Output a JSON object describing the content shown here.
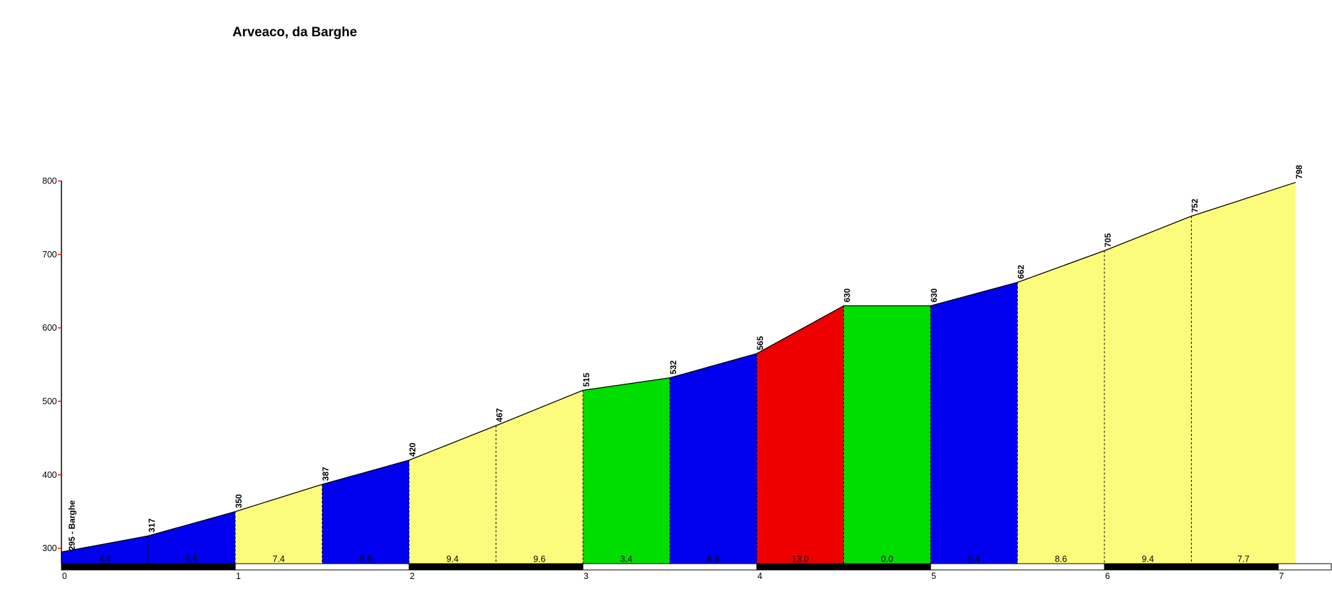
{
  "title": "Arveaco, da Barghe",
  "chart_data": {
    "type": "area",
    "title": "Arveaco, da Barghe",
    "description": "Climb elevation profile; colored 0.5 km segments by average gradient (%), elevations in m",
    "start_label": "295 - Barghe",
    "start_km": 0.0,
    "start_elevation": 295,
    "end_elevation": 798,
    "total_km": 7.1,
    "x_ticks": [
      0,
      1,
      2,
      3,
      4,
      5,
      6,
      7
    ],
    "y_ticks": [
      300,
      400,
      500,
      600,
      700,
      800
    ],
    "ylim": [
      300,
      800
    ],
    "grid": false,
    "segments": [
      {
        "from_km": 0.0,
        "to_km": 0.5,
        "from_elev": 295,
        "to_elev": 317,
        "gradient": "4.4",
        "color": "blue"
      },
      {
        "from_km": 0.5,
        "to_km": 1.0,
        "from_elev": 317,
        "to_elev": 350,
        "gradient": "6.6",
        "color": "blue"
      },
      {
        "from_km": 1.0,
        "to_km": 1.5,
        "from_elev": 350,
        "to_elev": 387,
        "gradient": "7.4",
        "color": "yellow"
      },
      {
        "from_km": 1.5,
        "to_km": 2.0,
        "from_elev": 387,
        "to_elev": 420,
        "gradient": "6.6",
        "color": "blue"
      },
      {
        "from_km": 2.0,
        "to_km": 2.5,
        "from_elev": 420,
        "to_elev": 467,
        "gradient": "9.4",
        "color": "yellow"
      },
      {
        "from_km": 2.5,
        "to_km": 3.0,
        "from_elev": 467,
        "to_elev": 515,
        "gradient": "9.6",
        "color": "yellow"
      },
      {
        "from_km": 3.0,
        "to_km": 3.5,
        "from_elev": 515,
        "to_elev": 532,
        "gradient": "3.4",
        "color": "green"
      },
      {
        "from_km": 3.5,
        "to_km": 4.0,
        "from_elev": 532,
        "to_elev": 565,
        "gradient": "6.6",
        "color": "blue"
      },
      {
        "from_km": 4.0,
        "to_km": 4.5,
        "from_elev": 565,
        "to_elev": 630,
        "gradient": "13.0",
        "color": "red"
      },
      {
        "from_km": 4.5,
        "to_km": 5.0,
        "from_elev": 630,
        "to_elev": 630,
        "gradient": "0.0",
        "color": "green"
      },
      {
        "from_km": 5.0,
        "to_km": 5.5,
        "from_elev": 630,
        "to_elev": 662,
        "gradient": "6.4",
        "color": "blue"
      },
      {
        "from_km": 5.5,
        "to_km": 6.0,
        "from_elev": 662,
        "to_elev": 705,
        "gradient": "8.6",
        "color": "yellow"
      },
      {
        "from_km": 6.0,
        "to_km": 6.5,
        "from_elev": 705,
        "to_elev": 752,
        "gradient": "9.4",
        "color": "yellow"
      },
      {
        "from_km": 6.5,
        "to_km": 7.1,
        "from_elev": 752,
        "to_elev": 798,
        "gradient": "7.7",
        "color": "yellow"
      }
    ],
    "colors": {
      "blue": "#0000EE",
      "yellow": "#FCFC7C",
      "green": "#00DD00",
      "red": "#EE0000",
      "outline": "#000000",
      "axis": "#000000",
      "axis_tick": "#FF0000",
      "km_bar_dark": "#000000",
      "km_bar_light": "#FFFFFF"
    },
    "km_bar": {
      "pattern": "alternating dark/light per km, light tail after last tick",
      "first_km_color": "dark"
    },
    "legend": null
  }
}
